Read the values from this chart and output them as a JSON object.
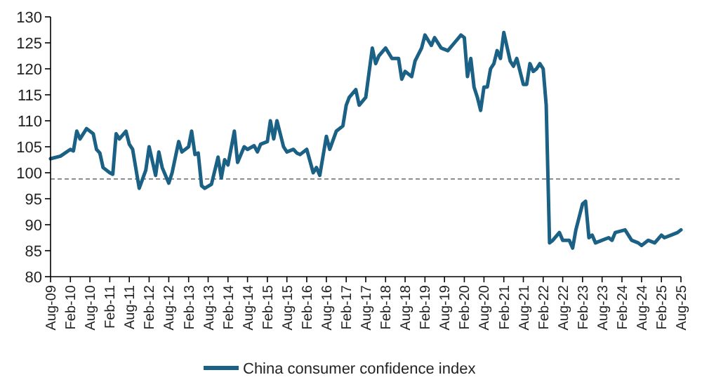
{
  "chart_data": {
    "type": "line",
    "legend": "bottom",
    "grid": false,
    "line_style": "solid",
    "marker": "none",
    "xlim": [
      "2009-08",
      "2025-08"
    ],
    "xticks": [
      {
        "value": "2009-08",
        "label": "Aug-09"
      },
      {
        "value": "2010-02",
        "label": "Feb-10"
      },
      {
        "value": "2010-08",
        "label": "Aug-10"
      },
      {
        "value": "2011-02",
        "label": "Feb-11"
      },
      {
        "value": "2011-08",
        "label": "Aug-11"
      },
      {
        "value": "2012-02",
        "label": "Feb-12"
      },
      {
        "value": "2012-08",
        "label": "Aug-12"
      },
      {
        "value": "2013-02",
        "label": "Feb-13"
      },
      {
        "value": "2013-08",
        "label": "Aug-13"
      },
      {
        "value": "2014-02",
        "label": "Feb-14"
      },
      {
        "value": "2014-08",
        "label": "Aug-14"
      },
      {
        "value": "2015-02",
        "label": "Feb-15"
      },
      {
        "value": "2015-08",
        "label": "Aug-15"
      },
      {
        "value": "2016-02",
        "label": "Feb-16"
      },
      {
        "value": "2016-08",
        "label": "Aug-16"
      },
      {
        "value": "2017-02",
        "label": "Feb-17"
      },
      {
        "value": "2017-08",
        "label": "Aug-17"
      },
      {
        "value": "2018-02",
        "label": "Feb-18"
      },
      {
        "value": "2018-08",
        "label": "Aug-18"
      },
      {
        "value": "2019-02",
        "label": "Feb-19"
      },
      {
        "value": "2019-08",
        "label": "Aug-19"
      },
      {
        "value": "2020-02",
        "label": "Feb-20"
      },
      {
        "value": "2020-08",
        "label": "Aug-20"
      },
      {
        "value": "2021-02",
        "label": "Feb-21"
      },
      {
        "value": "2021-08",
        "label": "Aug-21"
      },
      {
        "value": "2022-02",
        "label": "Feb-22"
      },
      {
        "value": "2022-08",
        "label": "Aug-22"
      },
      {
        "value": "2023-02",
        "label": "Feb-23"
      },
      {
        "value": "2023-08",
        "label": "Aug-23"
      },
      {
        "value": "2024-02",
        "label": "Feb-24"
      },
      {
        "value": "2024-08",
        "label": "Aug-24"
      },
      {
        "value": "2025-02",
        "label": "Feb-25"
      },
      {
        "value": "2025-08",
        "label": "Aug-25"
      }
    ],
    "ylim": [
      80,
      130
    ],
    "yticks": [
      80,
      85,
      90,
      95,
      100,
      105,
      110,
      115,
      120,
      125,
      130
    ],
    "ref_lines": [
      {
        "axis": "y",
        "value": 98.8,
        "color": "#7f7f7f",
        "line_style": "dashed"
      }
    ],
    "series": [
      {
        "name": "China consumer confidence index",
        "color": "#1b6185",
        "x": [
          "2009-08",
          "2009-11",
          "2010-02",
          "2010-03",
          "2010-04",
          "2010-05",
          "2010-07",
          "2010-09",
          "2010-10",
          "2010-11",
          "2010-12",
          "2011-02",
          "2011-03",
          "2011-04",
          "2011-05",
          "2011-07",
          "2011-08",
          "2011-09",
          "2011-11",
          "2012-01",
          "2012-02",
          "2012-04",
          "2012-05",
          "2012-06",
          "2012-08",
          "2012-09",
          "2012-11",
          "2012-12",
          "2013-02",
          "2013-03",
          "2013-04",
          "2013-05",
          "2013-06",
          "2013-07",
          "2013-09",
          "2013-11",
          "2013-12",
          "2014-01",
          "2014-02",
          "2014-04",
          "2014-05",
          "2014-07",
          "2014-08",
          "2014-10",
          "2014-11",
          "2014-12",
          "2015-02",
          "2015-03",
          "2015-04",
          "2015-05",
          "2015-07",
          "2015-08",
          "2015-10",
          "2015-11",
          "2015-12",
          "2016-02",
          "2016-04",
          "2016-05",
          "2016-06",
          "2016-08",
          "2016-09",
          "2016-11",
          "2017-01",
          "2017-02",
          "2017-03",
          "2017-05",
          "2017-06",
          "2017-08",
          "2017-10",
          "2017-11",
          "2017-12",
          "2018-02",
          "2018-04",
          "2018-06",
          "2018-07",
          "2018-08",
          "2018-10",
          "2018-11",
          "2019-01",
          "2019-02",
          "2019-04",
          "2019-05",
          "2019-07",
          "2019-09",
          "2019-11",
          "2020-01",
          "2020-02",
          "2020-03",
          "2020-04",
          "2020-05",
          "2020-06",
          "2020-07",
          "2020-08",
          "2020-09",
          "2020-10",
          "2020-11",
          "2020-12",
          "2021-01",
          "2021-02",
          "2021-04",
          "2021-05",
          "2021-06",
          "2021-08",
          "2021-09",
          "2021-10",
          "2021-11",
          "2021-12",
          "2022-01",
          "2022-02",
          "2022-03",
          "2022-04",
          "2022-05",
          "2022-07",
          "2022-08",
          "2022-10",
          "2022-11",
          "2022-12",
          "2023-02",
          "2023-03",
          "2023-04",
          "2023-05",
          "2023-06",
          "2023-08",
          "2023-10",
          "2023-11",
          "2023-12",
          "2024-03",
          "2024-05",
          "2024-07",
          "2024-08",
          "2024-10",
          "2024-12",
          "2025-02",
          "2025-03",
          "2025-05",
          "2025-07",
          "2025-08"
        ],
        "values": [
          102.7,
          103.2,
          104.5,
          104.2,
          108,
          106.5,
          108.5,
          107.5,
          104.5,
          103.8,
          101,
          100,
          99.7,
          107.5,
          106.5,
          108,
          105.5,
          104.5,
          97,
          100.5,
          105,
          99.5,
          104,
          101,
          98,
          100,
          106,
          104,
          105,
          108,
          103.5,
          103.8,
          97.5,
          97,
          97.8,
          103,
          99,
          102.5,
          101.5,
          108,
          102,
          105,
          104.5,
          105.2,
          104,
          105.5,
          106,
          110,
          106.5,
          110,
          105,
          104,
          104.5,
          103.8,
          103.5,
          104.5,
          100,
          101,
          99.5,
          107,
          104.5,
          108,
          109,
          113,
          114.5,
          116,
          113,
          114.5,
          124,
          121,
          122.5,
          124,
          122,
          122,
          118,
          119.5,
          118.5,
          121.5,
          124,
          126.5,
          124.5,
          126,
          124,
          123.5,
          125,
          126.5,
          126,
          118.5,
          122,
          116.5,
          114.5,
          112,
          116.5,
          116.5,
          120,
          121,
          123.5,
          122,
          127,
          121.5,
          120.5,
          122,
          117,
          117,
          121,
          119.5,
          120,
          121,
          120,
          113,
          86.5,
          87,
          88.5,
          87,
          87,
          85.5,
          89,
          94,
          94.5,
          87.5,
          88,
          86.5,
          87,
          87.5,
          87,
          88.5,
          89,
          87,
          86.5,
          86,
          87,
          86.5,
          88,
          87.5,
          88,
          88.5,
          89
        ]
      }
    ]
  }
}
